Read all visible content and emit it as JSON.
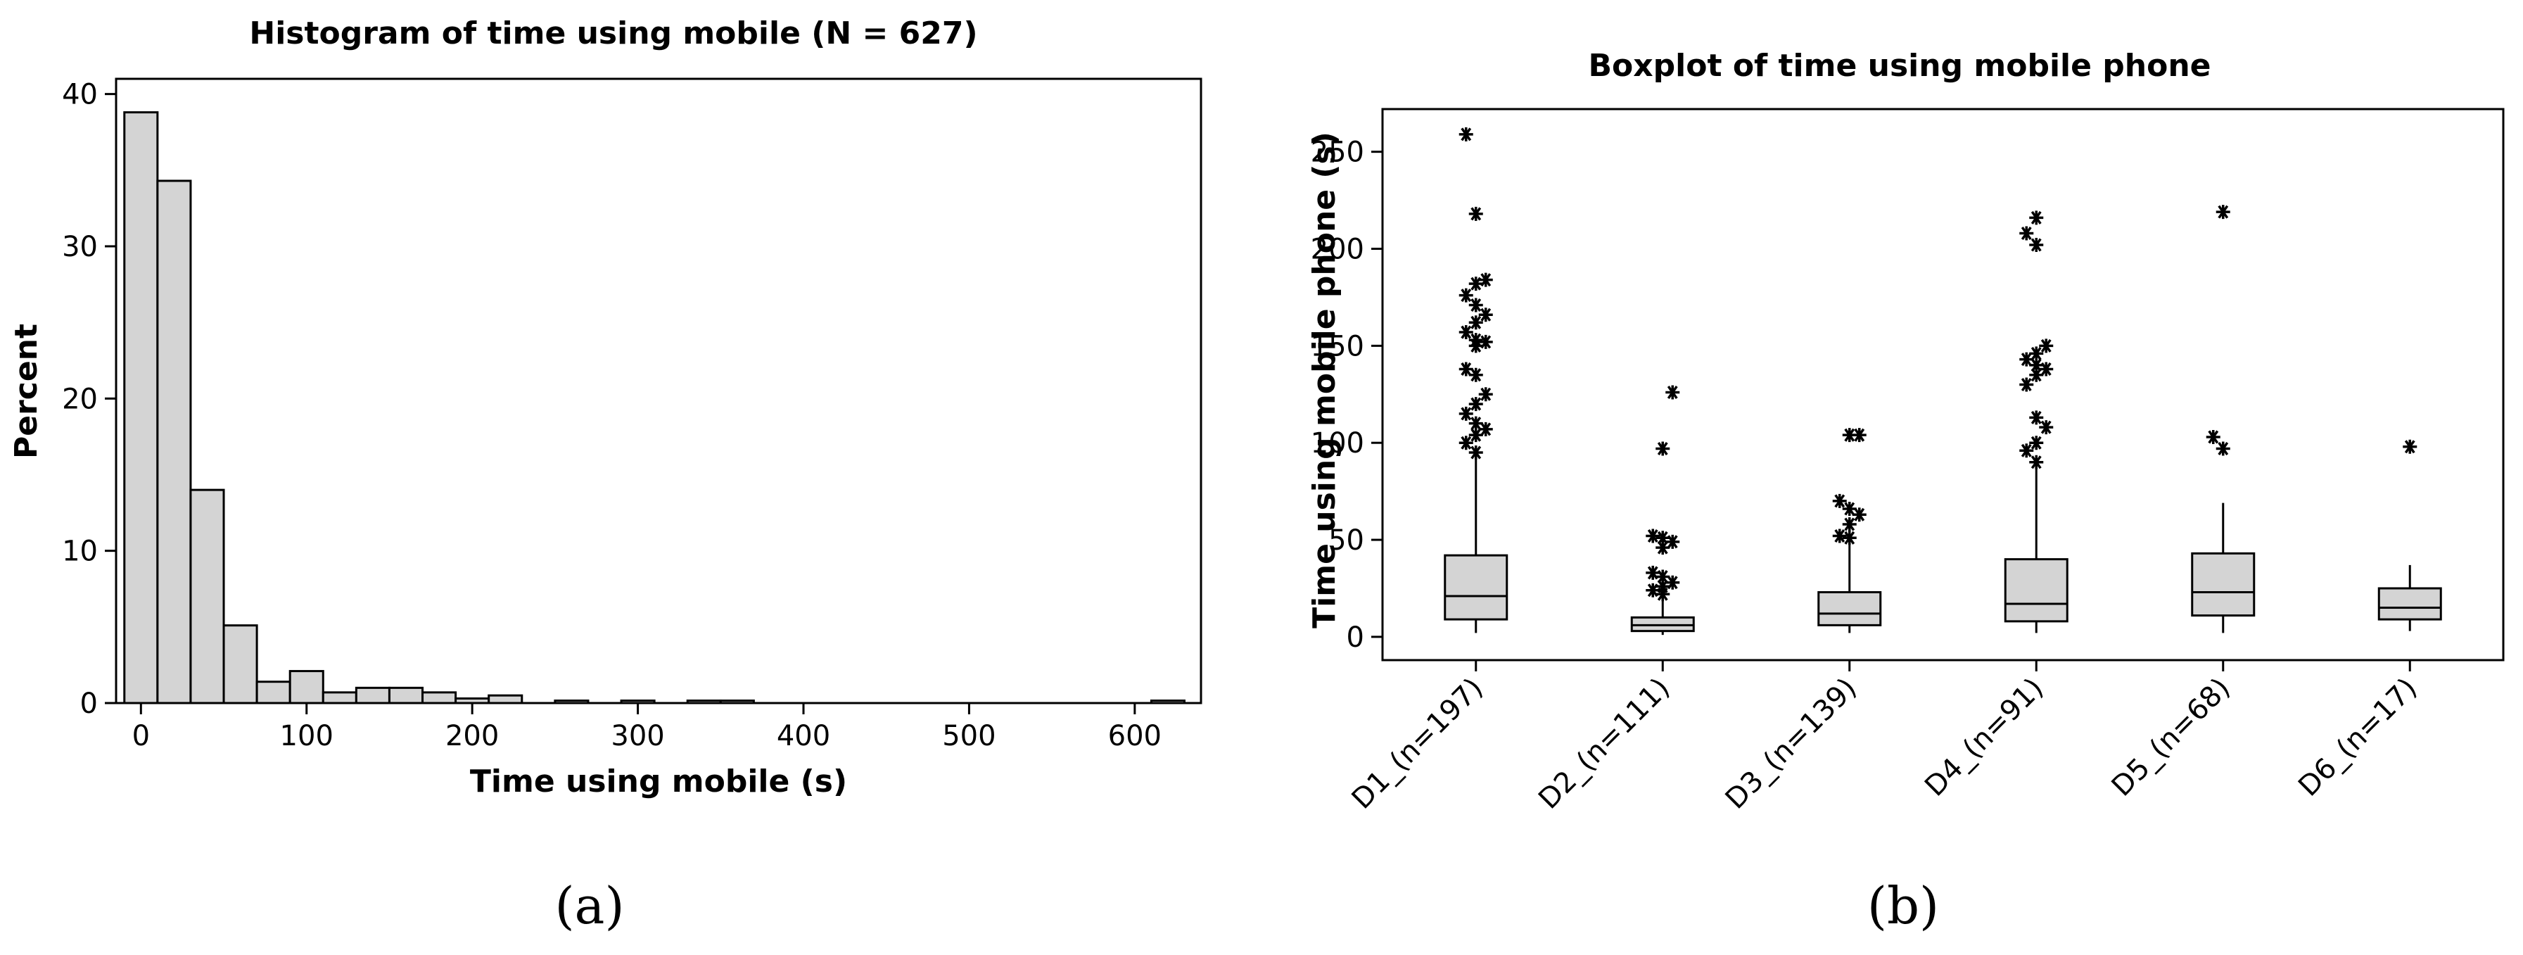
{
  "chart_data": [
    {
      "type": "bar",
      "title": "Histogram of time using mobile (N = 627)",
      "xlabel": "Time using mobile (s)",
      "ylabel": "Percent",
      "panel_label": "(a)",
      "bin_width": 20,
      "xlim": [
        -15,
        640
      ],
      "ylim": [
        0,
        41
      ],
      "xticks": [
        0,
        100,
        200,
        300,
        400,
        500,
        600
      ],
      "yticks": [
        0,
        10,
        20,
        30,
        40
      ],
      "bin_starts": [
        -10,
        10,
        30,
        50,
        70,
        90,
        110,
        130,
        150,
        170,
        190,
        210,
        250,
        290,
        330,
        350,
        610
      ],
      "values": [
        38.8,
        34.3,
        14.0,
        5.1,
        1.4,
        2.1,
        0.7,
        1.0,
        1.0,
        0.7,
        0.3,
        0.5,
        0.16,
        0.16,
        0.16,
        0.16,
        0.16
      ],
      "grid": false,
      "legend": "none"
    },
    {
      "type": "boxplot",
      "title": "Boxplot of time using mobile phone",
      "xlabel": "",
      "ylabel": "Time using mobile phone (s)",
      "panel_label": "(b)",
      "ylim": [
        -12,
        272
      ],
      "yticks": [
        0,
        50,
        100,
        150,
        200,
        250
      ],
      "categories": [
        "D1_(n=197)",
        "D2_(n=111)",
        "D3_(n=139)",
        "D4_(n=91)",
        "D5_(n=68)",
        "D6_(n=17)"
      ],
      "boxes": [
        {
          "whisker_low": 2,
          "q1": 9,
          "median": 21,
          "q3": 42,
          "whisker_high": 93,
          "outliers": [
            95,
            100,
            104,
            107,
            110,
            115,
            120,
            125,
            135,
            138,
            150,
            152,
            153,
            157,
            162,
            166,
            171,
            176,
            182,
            184,
            218,
            259
          ]
        },
        {
          "whisker_low": 1,
          "q1": 3,
          "median": 6,
          "q3": 10,
          "whisker_high": 20,
          "outliers": [
            22,
            24,
            26,
            28,
            31,
            33,
            46,
            49,
            51,
            52,
            97,
            126
          ]
        },
        {
          "whisker_low": 2,
          "q1": 6,
          "median": 12,
          "q3": 23,
          "whisker_high": 49,
          "outliers": [
            51,
            52,
            58,
            63,
            66,
            70,
            104,
            104
          ]
        },
        {
          "whisker_low": 2,
          "q1": 8,
          "median": 17,
          "q3": 40,
          "whisker_high": 88,
          "outliers": [
            90,
            96,
            100,
            108,
            113,
            130,
            135,
            138,
            140,
            143,
            146,
            150,
            202,
            208,
            216
          ]
        },
        {
          "whisker_low": 2,
          "q1": 11,
          "median": 23,
          "q3": 43,
          "whisker_high": 69,
          "outliers": [
            97,
            103,
            219
          ]
        },
        {
          "whisker_low": 3,
          "q1": 9,
          "median": 15,
          "q3": 25,
          "whisker_high": 37,
          "outliers": [
            98
          ]
        }
      ],
      "grid": false,
      "legend": "none"
    }
  ]
}
